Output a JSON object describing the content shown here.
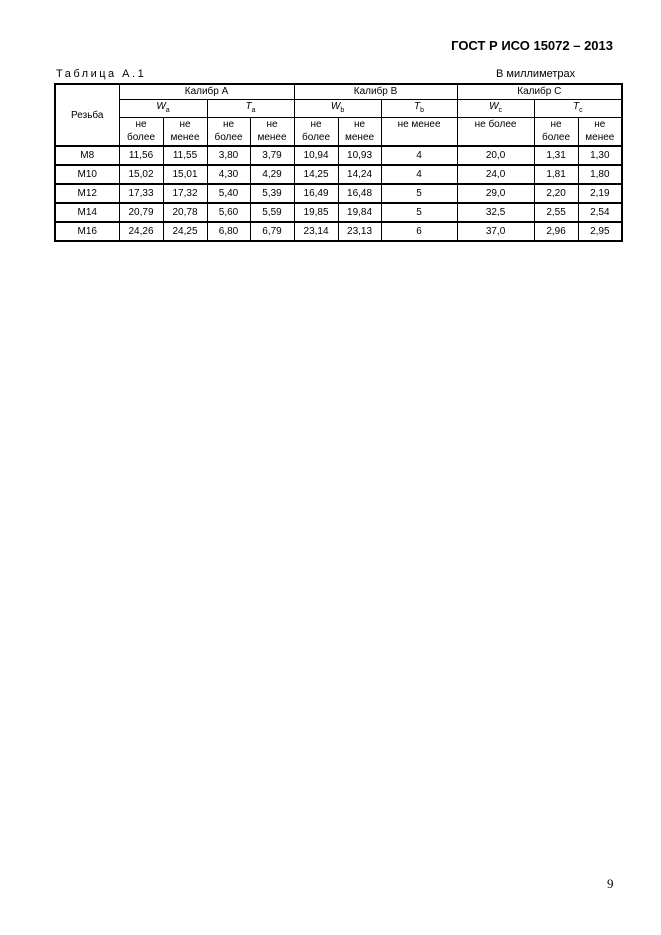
{
  "header": {
    "standard": "ГОСТ Р ИСО 15072 – 2013"
  },
  "table": {
    "caption": "Таблица А.1",
    "unit_note": "В миллиметрах",
    "col_thread": "Резьба",
    "groups": [
      "Калибр А",
      "Калибр В",
      "Калибр С"
    ],
    "params": [
      {
        "sym": "W",
        "sub": "a"
      },
      {
        "sym": "T",
        "sub": "a"
      },
      {
        "sym": "W",
        "sub": "b"
      },
      {
        "sym": "T",
        "sub": "b"
      },
      {
        "sym": "W",
        "sub": "c"
      },
      {
        "sym": "T",
        "sub": "c"
      }
    ],
    "limits": [
      "не более",
      "не менее",
      "не более",
      "не менее",
      "не более",
      "не менее",
      "не менее",
      "не более",
      "не более",
      "не менее"
    ],
    "rows": [
      [
        "М8",
        "11,56",
        "11,55",
        "3,80",
        "3,79",
        "10,94",
        "10,93",
        "4",
        "20,0",
        "1,31",
        "1,30"
      ],
      [
        "М10",
        "15,02",
        "15,01",
        "4,30",
        "4,29",
        "14,25",
        "14,24",
        "4",
        "24,0",
        "1,81",
        "1,80"
      ],
      [
        "М12",
        "17,33",
        "17,32",
        "5,40",
        "5,39",
        "16,49",
        "16,48",
        "5",
        "29,0",
        "2,20",
        "2,19"
      ],
      [
        "М14",
        "20,79",
        "20,78",
        "5,60",
        "5,59",
        "19,85",
        "19,84",
        "5",
        "32,5",
        "2,55",
        "2,54"
      ],
      [
        "М16",
        "24,26",
        "24,25",
        "6,80",
        "6,79",
        "23,14",
        "23,13",
        "6",
        "37,0",
        "2,96",
        "2,95"
      ]
    ]
  },
  "page_number": "9"
}
